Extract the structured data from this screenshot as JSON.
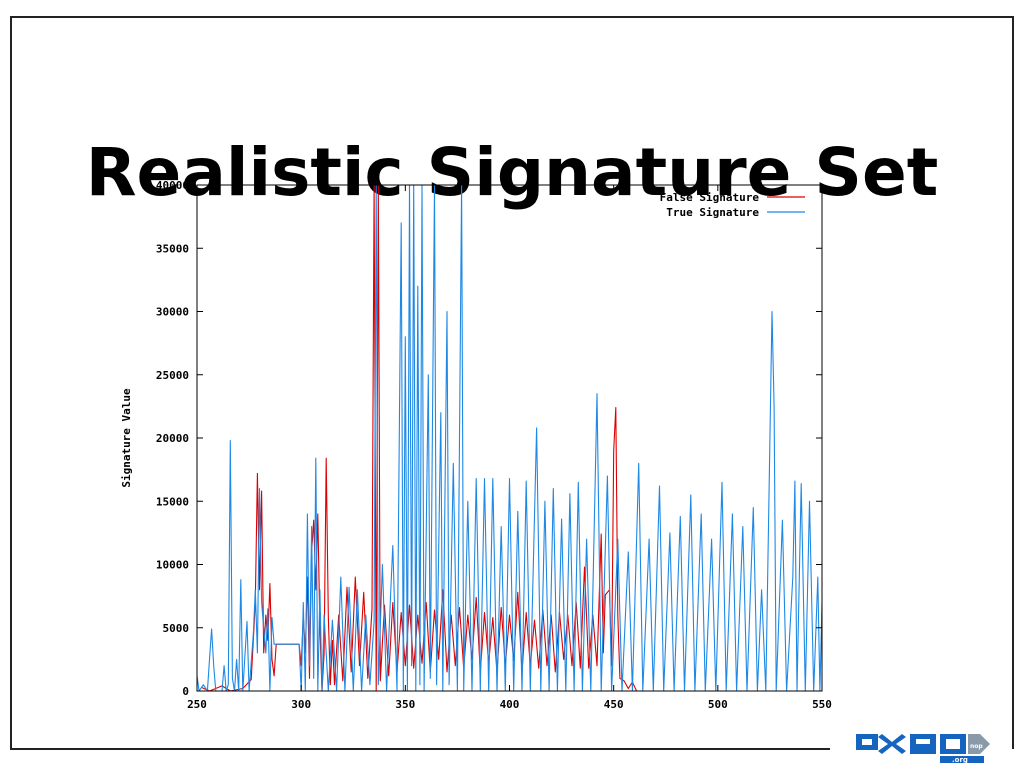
{
  "slide": {
    "title": "Realistic Signature Set"
  },
  "chart_data": {
    "type": "line",
    "ylabel": "Signature Value",
    "xlabel": "",
    "xlim": [
      250,
      550
    ],
    "ylim": [
      0,
      40000
    ],
    "x_ticks": [
      250,
      300,
      350,
      400,
      450,
      500,
      550
    ],
    "y_ticks": [
      0,
      5000,
      10000,
      15000,
      20000,
      25000,
      30000,
      35000,
      40000
    ],
    "x_tick_labels": [
      "250",
      "300",
      "350",
      "400",
      "450",
      "500",
      "550"
    ],
    "y_tick_labels": [
      "0",
      "5000",
      "10000",
      "15000",
      "20000",
      "25000",
      "30000",
      "35000",
      "40000"
    ],
    "legend_position": "top-right",
    "grid": false,
    "series": [
      {
        "name": "False Signature",
        "color": "#dd0000",
        "points": [
          [
            252,
            300
          ],
          [
            256,
            0
          ],
          [
            262,
            400
          ],
          [
            266,
            0
          ],
          [
            272,
            200
          ],
          [
            276,
            900
          ],
          [
            278,
            7000
          ],
          [
            279,
            17200
          ],
          [
            280,
            8000
          ],
          [
            281,
            15800
          ],
          [
            282,
            3000
          ],
          [
            283,
            6000
          ],
          [
            284,
            4000
          ],
          [
            285,
            8500
          ],
          [
            286,
            2500
          ],
          [
            287,
            1200
          ],
          [
            288,
            3700
          ],
          [
            289,
            3700
          ],
          [
            295,
            3700
          ],
          [
            299,
            3700
          ],
          [
            300,
            2000
          ],
          [
            301,
            6000
          ],
          [
            302,
            3000
          ],
          [
            303,
            9000
          ],
          [
            304,
            1000
          ],
          [
            305,
            11000
          ],
          [
            306,
            13500
          ],
          [
            307,
            8000
          ],
          [
            308,
            14000
          ],
          [
            309,
            5000
          ],
          [
            310,
            0
          ],
          [
            311,
            3000
          ],
          [
            312,
            18400
          ],
          [
            313,
            6000
          ],
          [
            314,
            500
          ],
          [
            315,
            4000
          ],
          [
            316,
            500
          ],
          [
            318,
            6000
          ],
          [
            320,
            800
          ],
          [
            322,
            8200
          ],
          [
            324,
            1500
          ],
          [
            326,
            9000
          ],
          [
            328,
            2000
          ],
          [
            330,
            7800
          ],
          [
            332,
            1000
          ],
          [
            334,
            6500
          ],
          [
            335,
            40000
          ],
          [
            336,
            0
          ],
          [
            337,
            40000
          ],
          [
            338,
            800
          ],
          [
            340,
            6800
          ],
          [
            342,
            1200
          ],
          [
            344,
            7000
          ],
          [
            346,
            1500
          ],
          [
            348,
            6200
          ],
          [
            350,
            2000
          ],
          [
            352,
            6800
          ],
          [
            354,
            1800
          ],
          [
            356,
            6000
          ],
          [
            358,
            2200
          ],
          [
            360,
            7000
          ],
          [
            362,
            1500
          ],
          [
            364,
            6400
          ],
          [
            366,
            2500
          ],
          [
            368,
            8000
          ],
          [
            370,
            1500
          ],
          [
            372,
            6000
          ],
          [
            374,
            2000
          ],
          [
            376,
            6600
          ],
          [
            378,
            1800
          ],
          [
            380,
            6000
          ],
          [
            382,
            2500
          ],
          [
            384,
            7400
          ],
          [
            386,
            1500
          ],
          [
            388,
            6200
          ],
          [
            390,
            2200
          ],
          [
            392,
            5800
          ],
          [
            394,
            1500
          ],
          [
            396,
            6600
          ],
          [
            398,
            2000
          ],
          [
            400,
            6000
          ],
          [
            402,
            2400
          ],
          [
            404,
            7800
          ],
          [
            406,
            1500
          ],
          [
            408,
            6200
          ],
          [
            410,
            2000
          ],
          [
            412,
            5600
          ],
          [
            414,
            1800
          ],
          [
            416,
            6400
          ],
          [
            418,
            2000
          ],
          [
            420,
            6000
          ],
          [
            422,
            1500
          ],
          [
            424,
            6200
          ],
          [
            426,
            2500
          ],
          [
            428,
            6000
          ],
          [
            430,
            2000
          ],
          [
            432,
            7000
          ],
          [
            434,
            1800
          ],
          [
            436,
            9800
          ],
          [
            438,
            1800
          ],
          [
            440,
            6000
          ],
          [
            442,
            2000
          ],
          [
            444,
            12400
          ],
          [
            445,
            3000
          ],
          [
            446,
            7600
          ],
          [
            448,
            8000
          ],
          [
            449,
            2000
          ],
          [
            450,
            19000
          ],
          [
            451,
            22400
          ],
          [
            452,
            6000
          ],
          [
            453,
            1000
          ],
          [
            455,
            800
          ],
          [
            457,
            200
          ],
          [
            459,
            700
          ],
          [
            461,
            0
          ]
        ]
      },
      {
        "name": "True Signature",
        "color": "#1e88e5",
        "points": [
          [
            250,
            1200
          ],
          [
            251,
            0
          ],
          [
            253,
            500
          ],
          [
            255,
            0
          ],
          [
            256,
            2500
          ],
          [
            257,
            4900
          ],
          [
            258,
            2000
          ],
          [
            259,
            0
          ],
          [
            262,
            0
          ],
          [
            263,
            2000
          ],
          [
            264,
            0
          ],
          [
            265,
            500
          ],
          [
            266,
            19800
          ],
          [
            267,
            1000
          ],
          [
            268,
            0
          ],
          [
            269,
            2500
          ],
          [
            270,
            0
          ],
          [
            271,
            8800
          ],
          [
            272,
            0
          ],
          [
            274,
            5500
          ],
          [
            275,
            0
          ],
          [
            277,
            4500
          ],
          [
            278,
            8000
          ],
          [
            279,
            3000
          ],
          [
            280,
            16000
          ],
          [
            281,
            7000
          ],
          [
            282,
            5000
          ],
          [
            283,
            3000
          ],
          [
            284,
            6500
          ],
          [
            285,
            0
          ],
          [
            286,
            5800
          ],
          [
            287,
            3700
          ],
          [
            288,
            3700
          ],
          [
            299,
            3700
          ],
          [
            300,
            0
          ],
          [
            301,
            7000
          ],
          [
            302,
            0
          ],
          [
            303,
            14000
          ],
          [
            304,
            2000
          ],
          [
            305,
            13000
          ],
          [
            306,
            1000
          ],
          [
            307,
            18400
          ],
          [
            308,
            0
          ],
          [
            309,
            8000
          ],
          [
            310,
            0
          ],
          [
            311,
            6000
          ],
          [
            313,
            0
          ],
          [
            315,
            5600
          ],
          [
            317,
            0
          ],
          [
            319,
            9000
          ],
          [
            321,
            0
          ],
          [
            323,
            8200
          ],
          [
            325,
            0
          ],
          [
            327,
            8000
          ],
          [
            329,
            0
          ],
          [
            331,
            6000
          ],
          [
            333,
            500
          ],
          [
            335,
            5500
          ],
          [
            336,
            40000
          ],
          [
            337,
            500
          ],
          [
            339,
            10000
          ],
          [
            341,
            0
          ],
          [
            343,
            8000
          ],
          [
            344,
            11500
          ],
          [
            346,
            0
          ],
          [
            348,
            37000
          ],
          [
            349,
            0
          ],
          [
            350,
            28000
          ],
          [
            351,
            0
          ],
          [
            352,
            40000
          ],
          [
            353,
            2000
          ],
          [
            354,
            40000
          ],
          [
            355,
            0
          ],
          [
            356,
            32000
          ],
          [
            357,
            500
          ],
          [
            358,
            40000
          ],
          [
            359,
            0
          ],
          [
            361,
            25000
          ],
          [
            362,
            1000
          ],
          [
            364,
            40000
          ],
          [
            365,
            500
          ],
          [
            367,
            22000
          ],
          [
            368,
            0
          ],
          [
            370,
            30000
          ],
          [
            371,
            500
          ],
          [
            373,
            18000
          ],
          [
            375,
            0
          ],
          [
            377,
            40000
          ],
          [
            378,
            0
          ],
          [
            380,
            15000
          ],
          [
            382,
            0
          ],
          [
            384,
            16800
          ],
          [
            386,
            0
          ],
          [
            388,
            16800
          ],
          [
            390,
            0
          ],
          [
            392,
            16800
          ],
          [
            394,
            0
          ],
          [
            396,
            13000
          ],
          [
            398,
            0
          ],
          [
            400,
            16800
          ],
          [
            402,
            0
          ],
          [
            404,
            14200
          ],
          [
            406,
            0
          ],
          [
            408,
            16600
          ],
          [
            410,
            0
          ],
          [
            413,
            20800
          ],
          [
            415,
            0
          ],
          [
            417,
            15000
          ],
          [
            419,
            0
          ],
          [
            421,
            16000
          ],
          [
            423,
            0
          ],
          [
            425,
            13600
          ],
          [
            427,
            0
          ],
          [
            429,
            15600
          ],
          [
            431,
            0
          ],
          [
            433,
            16500
          ],
          [
            435,
            0
          ],
          [
            437,
            12000
          ],
          [
            439,
            0
          ],
          [
            442,
            23500
          ],
          [
            444,
            0
          ],
          [
            447,
            17000
          ],
          [
            449,
            0
          ],
          [
            452,
            12000
          ],
          [
            454,
            0
          ],
          [
            457,
            11000
          ],
          [
            459,
            0
          ],
          [
            462,
            18000
          ],
          [
            464,
            0
          ],
          [
            467,
            12000
          ],
          [
            469,
            0
          ],
          [
            472,
            16200
          ],
          [
            474,
            0
          ],
          [
            477,
            12500
          ],
          [
            479,
            0
          ],
          [
            482,
            13800
          ],
          [
            484,
            0
          ],
          [
            487,
            15500
          ],
          [
            489,
            0
          ],
          [
            492,
            14000
          ],
          [
            494,
            0
          ],
          [
            497,
            12000
          ],
          [
            499,
            0
          ],
          [
            502,
            16500
          ],
          [
            504,
            0
          ],
          [
            507,
            14000
          ],
          [
            509,
            0
          ],
          [
            512,
            13000
          ],
          [
            514,
            0
          ],
          [
            517,
            14500
          ],
          [
            519,
            0
          ],
          [
            521,
            8000
          ],
          [
            523,
            0
          ],
          [
            526,
            30000
          ],
          [
            527,
            22500
          ],
          [
            528,
            0
          ],
          [
            531,
            13500
          ],
          [
            533,
            0
          ],
          [
            536,
            9000
          ],
          [
            537,
            16600
          ],
          [
            538,
            0
          ],
          [
            540,
            16400
          ],
          [
            542,
            0
          ],
          [
            544,
            15000
          ],
          [
            546,
            0
          ],
          [
            548,
            9000
          ],
          [
            549,
            0
          ],
          [
            550,
            7000
          ]
        ]
      }
    ]
  },
  "logo": {
    "main_text": "0x90",
    "suffix_text": ".org",
    "badge_text": "nop"
  }
}
